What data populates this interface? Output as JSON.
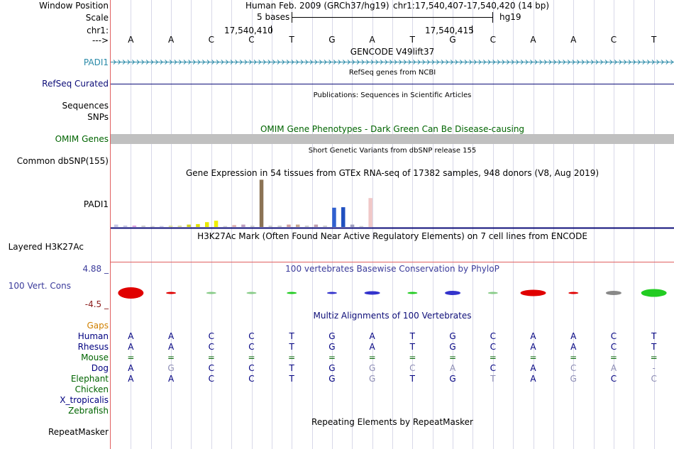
{
  "header": {
    "window_position_label": "Window Position",
    "assembly": "Human Feb. 2009 (GRCh37/hg19)",
    "position": "chr1:17,540,407-17,540,420 (14 bp)",
    "scale_label": "Scale",
    "scale_text": "5 bases",
    "scale_db": "hg19",
    "chrom_label": "chr1:",
    "coord_1": "17,540,410",
    "coord_2": "17,540,415",
    "strand_label": "--->"
  },
  "base_sequence": [
    "A",
    "A",
    "C",
    "C",
    "T",
    "G",
    "A",
    "T",
    "G",
    "C",
    "A",
    "A",
    "C",
    "T"
  ],
  "tracks": {
    "gencode": {
      "title": "GENCODE V49lift37",
      "label": "PADI1"
    },
    "refseq": {
      "title": "RefSeq genes from NCBI",
      "label": "RefSeq Curated"
    },
    "publications": {
      "title": "Publications: Sequences in Scientific Articles",
      "label_1": "Sequences",
      "label_2": "SNPs"
    },
    "omim": {
      "title": "OMIM Gene Phenotypes - Dark Green Can Be Disease-causing",
      "label": "OMIM Genes"
    },
    "dbsnp": {
      "title": "Short Genetic Variants from dbSNP release 155",
      "label": "Common dbSNP(155)"
    },
    "gtex": {
      "title": "Gene Expression in 54 tissues from GTEx RNA-seq of 17382 samples, 948 donors (V8, Aug 2019)",
      "label": "PADI1"
    },
    "h3k27ac": {
      "title": "H3K27Ac Mark (Often Found Near Active Regulatory Elements) on 7 cell lines from ENCODE",
      "label": "Layered H3K27Ac"
    },
    "phylop": {
      "title": "100 vertebrates Basewise Conservation by PhyloP",
      "label": "100 Vert. Cons",
      "max_label": "4.88 _",
      "min_label": "-4.5 _"
    },
    "multiz": {
      "title": "Multiz Alignments of 100 Vertebrates",
      "gaps_label": "Gaps"
    },
    "repeatmasker": {
      "title": "Repeating Elements by RepeatMasker",
      "label": "RepeatMasker"
    }
  },
  "gtex_bars": [
    {
      "value": 0.5,
      "color": "#c8c8e6"
    },
    {
      "value": 0.3,
      "color": "#c8c8e6"
    },
    {
      "value": 0.3,
      "color": "#e0a0e0"
    },
    {
      "value": 0.3,
      "color": "#d0d0d0"
    },
    {
      "value": 0.2,
      "color": "#d0d0d0"
    },
    {
      "value": 0.2,
      "color": "#c8c8e6"
    },
    {
      "value": 0.3,
      "color": "#e0e0a0"
    },
    {
      "value": 0.3,
      "color": "#e0e0a0"
    },
    {
      "value": 0.5,
      "color": "#d0d020"
    },
    {
      "value": 0.6,
      "color": "#e0e000"
    },
    {
      "value": 1.0,
      "color": "#e8e800"
    },
    {
      "value": 1.3,
      "color": "#f0f000"
    },
    {
      "value": 0.2,
      "color": "#d0d0d0"
    },
    {
      "value": 0.4,
      "color": "#e0b0b0"
    },
    {
      "value": 0.5,
      "color": "#c0a0c0"
    },
    {
      "value": 0.3,
      "color": "#d0d0d0"
    },
    {
      "value": 9.8,
      "color": "#8b7355"
    },
    {
      "value": 0.3,
      "color": "#d0d0d0"
    },
    {
      "value": 0.3,
      "color": "#d0d0d0"
    },
    {
      "value": 0.5,
      "color": "#d0a0a0"
    },
    {
      "value": 0.5,
      "color": "#c8a890"
    },
    {
      "value": 0.3,
      "color": "#d0d0d0"
    },
    {
      "value": 0.5,
      "color": "#c0a0b0"
    },
    {
      "value": 0.3,
      "color": "#d0d0d0"
    },
    {
      "value": 4.0,
      "color": "#3060d0"
    },
    {
      "value": 4.1,
      "color": "#2050c0"
    },
    {
      "value": 0.5,
      "color": "#a0a0c0"
    },
    {
      "value": 0.2,
      "color": "#d0d0d0"
    },
    {
      "value": 6.0,
      "color": "#f0c8c8"
    }
  ],
  "phylop_values": [
    1.6,
    0.1,
    0.15,
    0.2,
    0.25,
    0.2,
    0.5,
    0.3,
    0.6,
    0.1,
    0.9,
    0.15,
    0.6,
    1.1
  ],
  "phylop_colors": [
    "#e00000",
    "#e00000",
    "#88cc88",
    "#88cc88",
    "#22cc22",
    "#3333cc",
    "#3333cc",
    "#22cc22",
    "#3333cc",
    "#88cc88",
    "#e00000",
    "#e00000",
    "#888888",
    "#22cc22"
  ],
  "alignments": [
    {
      "species": "Human",
      "color": "#000080",
      "bases": [
        "A",
        "A",
        "C",
        "C",
        "T",
        "G",
        "A",
        "T",
        "G",
        "C",
        "A",
        "A",
        "C",
        "T"
      ],
      "faded": []
    },
    {
      "species": "Rhesus",
      "color": "#000080",
      "bases": [
        "A",
        "A",
        "C",
        "C",
        "T",
        "G",
        "A",
        "T",
        "G",
        "C",
        "A",
        "A",
        "C",
        "T"
      ],
      "faded": []
    },
    {
      "species": "Mouse",
      "color": "#006400",
      "bases": [
        "=",
        "=",
        "=",
        "=",
        "=",
        "=",
        "=",
        "=",
        "=",
        "=",
        "=",
        "=",
        "=",
        "="
      ],
      "faded": []
    },
    {
      "species": "Dog",
      "color": "#000080",
      "bases": [
        "A",
        "G",
        "C",
        "C",
        "T",
        "G",
        "G",
        "C",
        "A",
        "C",
        "A",
        "C",
        "A",
        "-"
      ],
      "faded": [
        1,
        6,
        7,
        8,
        11,
        12,
        13
      ]
    },
    {
      "species": "Elephant",
      "color": "#006400",
      "bases": [
        "A",
        "A",
        "C",
        "C",
        "T",
        "G",
        "G",
        "T",
        "G",
        "T",
        "A",
        "G",
        "C",
        "C"
      ],
      "faded": [
        6,
        9,
        11,
        13
      ]
    },
    {
      "species": "Chicken",
      "color": "#006400",
      "bases": [],
      "faded": []
    },
    {
      "species": "X_tropicalis",
      "color": "#000080",
      "bases": [],
      "faded": []
    },
    {
      "species": "Zebrafish",
      "color": "#006400",
      "bases": [],
      "faded": []
    }
  ],
  "colors": {
    "gene_blue": "#2a8aa8",
    "refseq_navy": "#0c0c78",
    "omim_green": "#006400",
    "omim_gray": "#c0c0c0",
    "phylop_blue": "#3b3b9b",
    "phylop_red": "#8b1a1a",
    "gaps_orange": "#d08000",
    "grid_line": "#d8d8e8",
    "red_line": "#e06060"
  }
}
